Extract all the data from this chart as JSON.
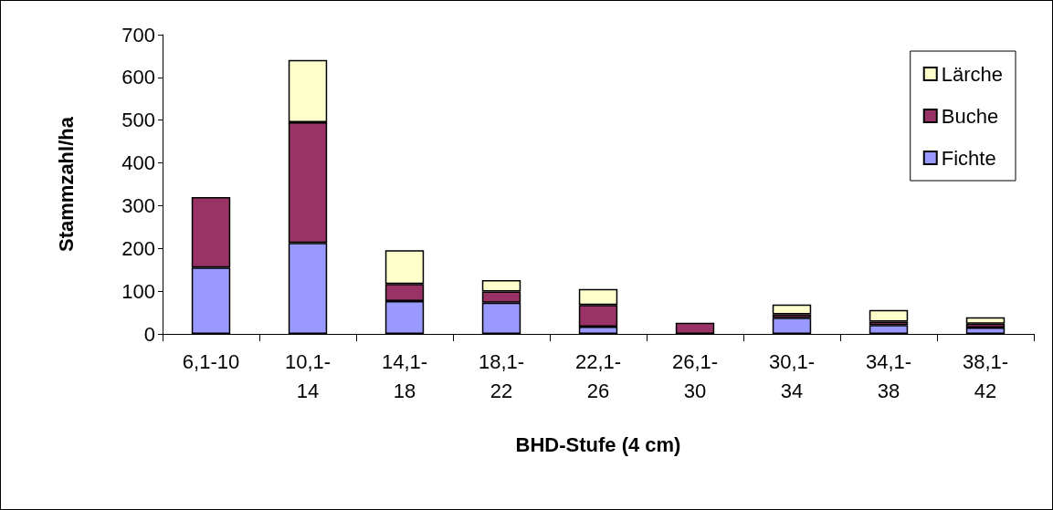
{
  "chart_data": {
    "type": "bar",
    "stacked": true,
    "xlabel": "BHD-Stufe (4 cm)",
    "ylabel": "Stammzahl/ha",
    "categories": [
      "6,1-10",
      "10,1-14",
      "14,1-18",
      "18,1-22",
      "22,1-26",
      "26,1-30",
      "30,1-34",
      "34,1-38",
      "38,1-42"
    ],
    "series": [
      {
        "name": "Fichte",
        "color": "#9999ff",
        "values": [
          155,
          213,
          77,
          73,
          17,
          0,
          38,
          21,
          15
        ]
      },
      {
        "name": "Buche",
        "color": "#993366",
        "values": [
          165,
          282,
          40,
          26,
          51,
          26,
          8,
          8,
          9
        ]
      },
      {
        "name": "Lärche",
        "color": "#ffffcc",
        "values": [
          0,
          146,
          79,
          27,
          37,
          0,
          23,
          27,
          15
        ]
      }
    ],
    "ylim": [
      0,
      700
    ],
    "yticks": [
      0,
      100,
      200,
      300,
      400,
      500,
      600,
      700
    ],
    "grid": false,
    "legend": "top right"
  }
}
